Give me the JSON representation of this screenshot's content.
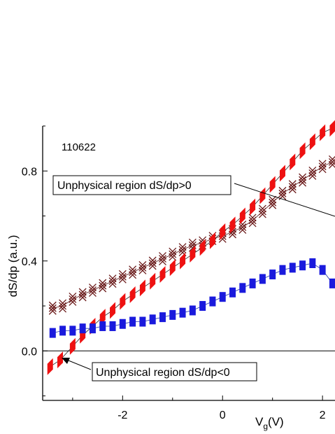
{
  "chart_data": {
    "type": "scatter",
    "title": "",
    "annotation_id": "110622",
    "xlabel_main": "V",
    "xlabel_sub": "g",
    "xlabel_unit": "(V)",
    "ylabel": "dS/dp (a.u.)",
    "xlim": [
      -3.6,
      2.25
    ],
    "ylim": [
      -0.22,
      1.0
    ],
    "xticks": [
      -2,
      0,
      2
    ],
    "xtick_labels": [
      "-2",
      "0",
      "2"
    ],
    "yticks": [
      0.0,
      0.4,
      0.8
    ],
    "ytick_labels": [
      "0.0",
      "0.4",
      "0.8"
    ],
    "zero_line": true,
    "annotations": [
      {
        "text": "Unphysical region dS/dp>0",
        "target": [
          2.25,
          0.6
        ]
      },
      {
        "text": "Unphysical region dS/dp<0",
        "target": [
          -3.05,
          -0.05
        ]
      }
    ],
    "series": [
      {
        "marker": "cross",
        "color": "#6b1a1a",
        "x": [
          -3.4,
          -3.2,
          -3.0,
          -2.8,
          -2.6,
          -2.4,
          -2.2,
          -2.0,
          -1.8,
          -1.6,
          -1.4,
          -1.2,
          -1.0,
          -0.8,
          -0.6,
          -0.4,
          -0.2,
          0.0,
          0.2,
          0.4,
          0.6,
          0.8,
          1.0,
          1.2,
          1.4,
          1.6,
          1.8,
          2.0,
          2.2
        ],
        "y": [
          0.19,
          0.2,
          0.23,
          0.25,
          0.27,
          0.29,
          0.31,
          0.33,
          0.35,
          0.37,
          0.39,
          0.41,
          0.43,
          0.45,
          0.47,
          0.48,
          0.5,
          0.51,
          0.53,
          0.55,
          0.58,
          0.62,
          0.66,
          0.7,
          0.73,
          0.76,
          0.79,
          0.82,
          0.84
        ]
      },
      {
        "marker": "thick-diagonal-bar",
        "color": "#ee1111",
        "x": [
          -3.45,
          -3.25,
          -3.0,
          -2.8,
          -2.6,
          -2.4,
          -2.2,
          -2.0,
          -1.8,
          -1.6,
          -1.4,
          -1.2,
          -1.0,
          -0.8,
          -0.6,
          -0.4,
          -0.2,
          0.0,
          0.2,
          0.4,
          0.6,
          0.8,
          1.0,
          1.2,
          1.4,
          1.6,
          1.8,
          2.0,
          2.2
        ],
        "y": [
          -0.07,
          -0.04,
          0.02,
          0.07,
          0.11,
          0.15,
          0.18,
          0.22,
          0.25,
          0.28,
          0.31,
          0.34,
          0.37,
          0.4,
          0.43,
          0.46,
          0.49,
          0.53,
          0.56,
          0.6,
          0.64,
          0.69,
          0.74,
          0.79,
          0.84,
          0.89,
          0.93,
          0.97,
          0.99
        ]
      },
      {
        "marker": "rect",
        "color": "#1a1add",
        "x": [
          -3.4,
          -3.2,
          -3.0,
          -2.8,
          -2.6,
          -2.4,
          -2.2,
          -2.0,
          -1.8,
          -1.6,
          -1.4,
          -1.2,
          -1.0,
          -0.8,
          -0.6,
          -0.4,
          -0.2,
          0.0,
          0.2,
          0.4,
          0.6,
          0.8,
          1.0,
          1.2,
          1.4,
          1.6,
          1.8,
          2.0,
          2.2
        ],
        "y": [
          0.08,
          0.09,
          0.09,
          0.1,
          0.1,
          0.11,
          0.11,
          0.12,
          0.13,
          0.13,
          0.14,
          0.15,
          0.16,
          0.17,
          0.18,
          0.2,
          0.22,
          0.24,
          0.26,
          0.28,
          0.3,
          0.32,
          0.34,
          0.36,
          0.37,
          0.38,
          0.39,
          0.36,
          0.3
        ]
      }
    ]
  }
}
